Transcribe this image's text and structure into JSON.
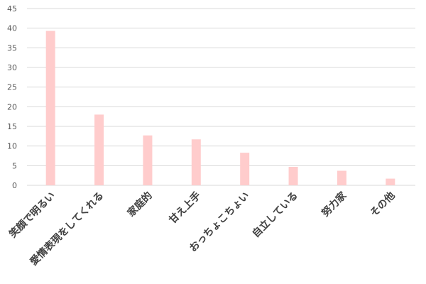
{
  "chart_data": {
    "type": "bar",
    "categories": [
      "笑顔で明るい",
      "愛情表現をしてくれる",
      "家庭的",
      "甘え上手",
      "おっちょこちょい",
      "自立している",
      "努力家",
      "その他"
    ],
    "values": [
      39.3,
      18.0,
      12.7,
      11.7,
      8.3,
      4.7,
      3.7,
      1.7
    ],
    "ylim": [
      0,
      45
    ],
    "yticks": [
      0,
      5,
      10,
      15,
      20,
      25,
      30,
      35,
      40,
      45
    ],
    "grid": true,
    "legend": "none",
    "colors": {
      "bar": "#ffcccc",
      "grid": "#d9d9d9"
    }
  }
}
